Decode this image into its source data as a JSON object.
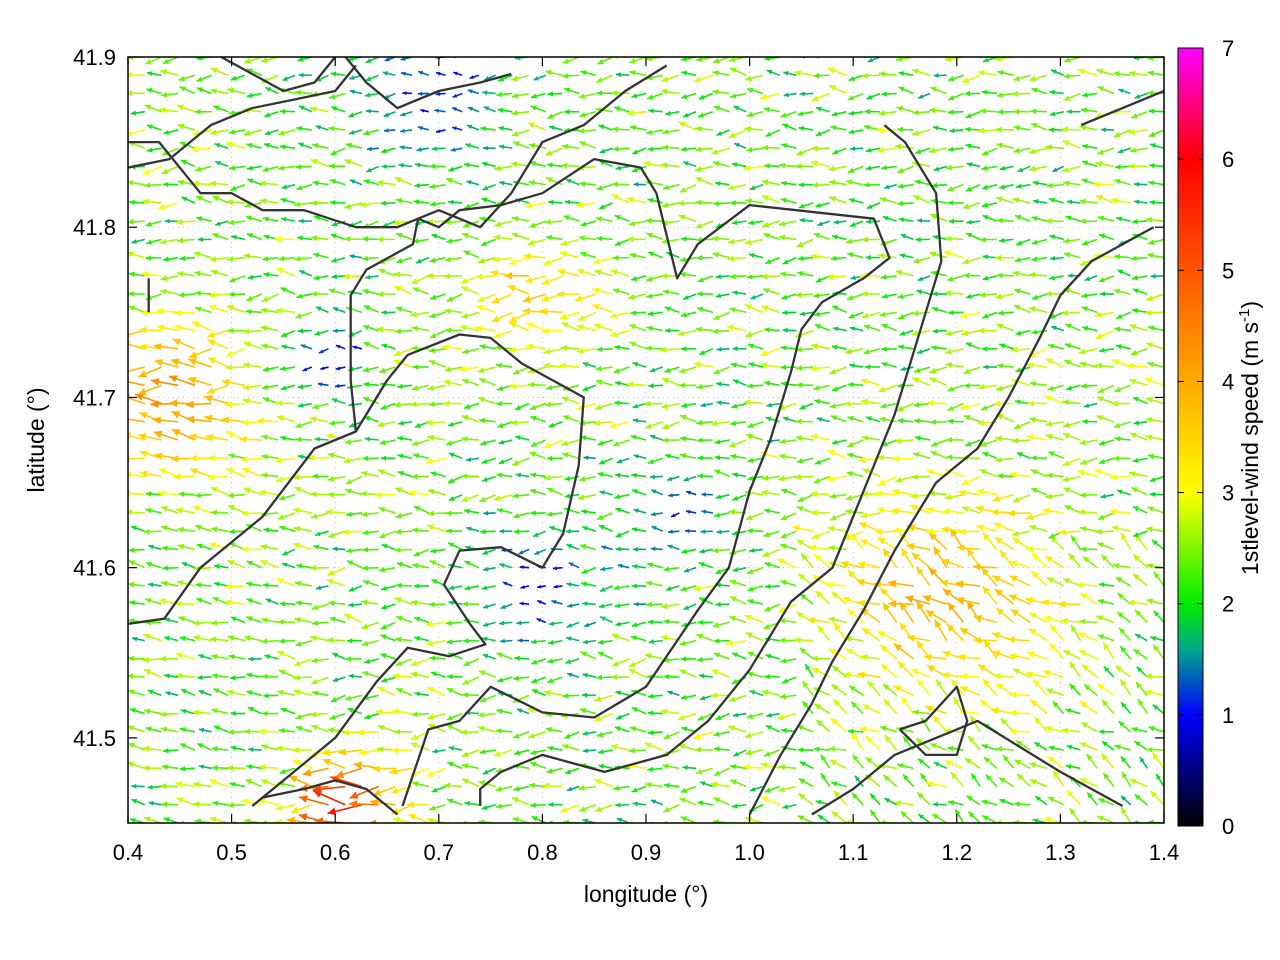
{
  "chart_data": {
    "type": "vector-field",
    "xlabel": "longitude (°)",
    "ylabel": "latitude (°)",
    "colorbar_label": "1stlevel-wind speed (m s",
    "colorbar_label_sup": "-1",
    "colorbar_label_end": ")",
    "xlim": [
      0.4,
      1.4
    ],
    "ylim": [
      41.45,
      41.9
    ],
    "x_ticks": [
      "0.4",
      "0.5",
      "0.6",
      "0.7",
      "0.8",
      "0.9",
      "1.0",
      "1.1",
      "1.2",
      "1.3",
      "1.4"
    ],
    "x_tick_values": [
      0.4,
      0.5,
      0.6,
      0.7,
      0.8,
      0.9,
      1.0,
      1.1,
      1.2,
      1.3,
      1.4
    ],
    "y_ticks": [
      "41.5",
      "41.6",
      "41.7",
      "41.8",
      "41.9"
    ],
    "y_tick_values": [
      41.5,
      41.6,
      41.7,
      41.8,
      41.9
    ],
    "colorbar_range": [
      0,
      7
    ],
    "colorbar_ticks": [
      "0",
      "1",
      "2",
      "3",
      "4",
      "5",
      "6",
      "7"
    ],
    "colorbar_tick_values": [
      0,
      1,
      2,
      3,
      4,
      5,
      6,
      7
    ],
    "colormap": [
      {
        "v": 0.0,
        "color": "#000000"
      },
      {
        "v": 1.0,
        "color": "#0000ff"
      },
      {
        "v": 1.6,
        "color": "#00aa88"
      },
      {
        "v": 2.0,
        "color": "#00ee00"
      },
      {
        "v": 3.0,
        "color": "#ffff00"
      },
      {
        "v": 4.0,
        "color": "#ffaa00"
      },
      {
        "v": 5.0,
        "color": "#ff5500"
      },
      {
        "v": 6.0,
        "color": "#ff0000"
      },
      {
        "v": 7.0,
        "color": "#ff00ff"
      }
    ],
    "grid": true,
    "grid_style": "dotted",
    "contour_color": "#333333",
    "contours": [
      [
        [
          0.4,
          41.567
        ],
        [
          0.435,
          41.57
        ],
        [
          0.47,
          41.6
        ],
        [
          0.53,
          41.63
        ],
        [
          0.58,
          41.67
        ],
        [
          0.62,
          41.68
        ],
        [
          0.65,
          41.71
        ],
        [
          0.67,
          41.725
        ],
        [
          0.72,
          41.737
        ],
        [
          0.75,
          41.735
        ],
        [
          0.78,
          41.72
        ],
        [
          0.81,
          41.71
        ],
        [
          0.84,
          41.7
        ],
        [
          0.835,
          41.66
        ],
        [
          0.82,
          41.62
        ],
        [
          0.8,
          41.6
        ],
        [
          0.76,
          41.612
        ],
        [
          0.72,
          41.61
        ],
        [
          0.705,
          41.59
        ],
        [
          0.73,
          41.567
        ],
        [
          0.745,
          41.555
        ],
        [
          0.71,
          41.548
        ],
        [
          0.67,
          41.553
        ],
        [
          0.64,
          41.533
        ],
        [
          0.6,
          41.5
        ],
        [
          0.56,
          41.48
        ],
        [
          0.52,
          41.46
        ]
      ],
      [
        [
          0.665,
          41.46
        ],
        [
          0.69,
          41.505
        ],
        [
          0.72,
          41.51
        ],
        [
          0.75,
          41.53
        ],
        [
          0.8,
          41.515
        ],
        [
          0.85,
          41.512
        ],
        [
          0.9,
          41.53
        ],
        [
          0.95,
          41.575
        ],
        [
          0.98,
          41.6
        ],
        [
          1.0,
          41.645
        ],
        [
          1.02,
          41.675
        ],
        [
          1.04,
          41.715
        ],
        [
          1.05,
          41.74
        ],
        [
          1.07,
          41.756
        ],
        [
          1.11,
          41.77
        ],
        [
          1.135,
          41.782
        ],
        [
          1.12,
          41.805
        ],
        [
          1.0,
          41.813
        ],
        [
          0.95,
          41.79
        ],
        [
          0.93,
          41.77
        ],
        [
          0.91,
          41.82
        ],
        [
          0.895,
          41.835
        ],
        [
          0.85,
          41.84
        ],
        [
          0.8,
          41.82
        ],
        [
          0.76,
          41.813
        ],
        [
          0.72,
          41.81
        ],
        [
          0.7,
          41.8
        ],
        [
          0.68,
          41.805
        ],
        [
          0.675,
          41.79
        ],
        [
          0.63,
          41.775
        ],
        [
          0.615,
          41.76
        ],
        [
          0.615,
          41.71
        ],
        [
          0.62,
          41.68
        ]
      ],
      [
        [
          0.74,
          41.46
        ],
        [
          0.74,
          41.47
        ],
        [
          0.76,
          41.48
        ],
        [
          0.8,
          41.49
        ],
        [
          0.86,
          41.48
        ],
        [
          0.92,
          41.49
        ],
        [
          0.96,
          41.51
        ],
        [
          1.0,
          41.54
        ],
        [
          1.04,
          41.58
        ],
        [
          1.08,
          41.6
        ],
        [
          1.1,
          41.63
        ],
        [
          1.12,
          41.66
        ],
        [
          1.14,
          41.69
        ],
        [
          1.16,
          41.73
        ],
        [
          1.185,
          41.78
        ],
        [
          1.18,
          41.82
        ],
        [
          1.15,
          41.85
        ],
        [
          1.13,
          41.86
        ]
      ],
      [
        [
          1.0,
          41.455
        ],
        [
          1.03,
          41.49
        ],
        [
          1.06,
          41.52
        ],
        [
          1.08,
          41.545
        ],
        [
          1.11,
          41.575
        ],
        [
          1.14,
          41.61
        ],
        [
          1.18,
          41.65
        ],
        [
          1.22,
          41.67
        ],
        [
          1.25,
          41.7
        ],
        [
          1.28,
          41.735
        ],
        [
          1.3,
          41.76
        ],
        [
          1.33,
          41.78
        ],
        [
          1.36,
          41.79
        ],
        [
          1.39,
          41.8
        ]
      ],
      [
        [
          1.06,
          41.455
        ],
        [
          1.1,
          41.47
        ],
        [
          1.14,
          41.49
        ],
        [
          1.18,
          41.5
        ],
        [
          1.22,
          41.51
        ],
        [
          1.26,
          41.495
        ],
        [
          1.3,
          41.48
        ],
        [
          1.33,
          41.47
        ],
        [
          1.36,
          41.46
        ]
      ],
      [
        [
          1.145,
          41.505
        ],
        [
          1.17,
          41.51
        ],
        [
          1.2,
          41.53
        ],
        [
          1.21,
          41.51
        ],
        [
          1.2,
          41.49
        ],
        [
          1.17,
          41.49
        ],
        [
          1.145,
          41.505
        ]
      ],
      [
        [
          0.53,
          41.465
        ],
        [
          0.57,
          41.47
        ],
        [
          0.6,
          41.475
        ],
        [
          0.63,
          41.47
        ],
        [
          0.66,
          41.455
        ]
      ],
      [
        [
          0.4,
          41.85
        ],
        [
          0.43,
          41.85
        ],
        [
          0.47,
          41.82
        ],
        [
          0.5,
          41.82
        ],
        [
          0.53,
          41.81
        ],
        [
          0.57,
          41.81
        ],
        [
          0.62,
          41.8
        ],
        [
          0.66,
          41.8
        ],
        [
          0.7,
          41.81
        ],
        [
          0.74,
          41.8
        ],
        [
          0.77,
          41.82
        ],
        [
          0.8,
          41.85
        ],
        [
          0.84,
          41.86
        ],
        [
          0.88,
          41.88
        ],
        [
          0.92,
          41.895
        ]
      ],
      [
        [
          0.4,
          41.835
        ],
        [
          0.44,
          41.84
        ],
        [
          0.48,
          41.86
        ],
        [
          0.52,
          41.87
        ],
        [
          0.56,
          41.875
        ],
        [
          0.6,
          41.88
        ],
        [
          0.62,
          41.895
        ]
      ],
      [
        [
          0.61,
          41.9
        ],
        [
          0.63,
          41.885
        ],
        [
          0.66,
          41.87
        ],
        [
          0.7,
          41.88
        ],
        [
          0.74,
          41.885
        ],
        [
          0.77,
          41.89
        ]
      ],
      [
        [
          0.49,
          41.9
        ],
        [
          0.52,
          41.89
        ],
        [
          0.55,
          41.88
        ],
        [
          0.58,
          41.885
        ],
        [
          0.6,
          41.9
        ]
      ],
      [
        [
          0.42,
          41.75
        ],
        [
          0.42,
          41.77
        ]
      ],
      [
        [
          1.32,
          41.86
        ],
        [
          1.36,
          41.87
        ],
        [
          1.4,
          41.88
        ]
      ]
    ],
    "vector_field": {
      "description": "wind vectors on a regular lon/lat grid, predominantly pointing west (wind from the east), speeds 0-6 m/s",
      "x_range": [
        0.4,
        1.4
      ],
      "y_range": [
        41.45,
        41.9
      ],
      "nx": 62,
      "ny": 42,
      "dominant_direction_deg": 180,
      "speed_regions": [
        {
          "x": 0.45,
          "y": 41.7,
          "r": 0.08,
          "speed": 4.2
        },
        {
          "x": 0.8,
          "y": 41.76,
          "r": 0.06,
          "speed": 3.6
        },
        {
          "x": 1.2,
          "y": 41.58,
          "r": 0.12,
          "speed": 3.8
        },
        {
          "x": 0.62,
          "y": 41.46,
          "r": 0.05,
          "speed": 5.5
        },
        {
          "x": 0.93,
          "y": 41.63,
          "r": 0.05,
          "speed": 1.2
        },
        {
          "x": 0.8,
          "y": 41.59,
          "r": 0.06,
          "speed": 1.0
        },
        {
          "x": 0.7,
          "y": 41.88,
          "r": 0.07,
          "speed": 1.0
        },
        {
          "x": 0.6,
          "y": 41.72,
          "r": 0.04,
          "speed": 1.0
        }
      ],
      "background_speed": 2.3
    }
  }
}
